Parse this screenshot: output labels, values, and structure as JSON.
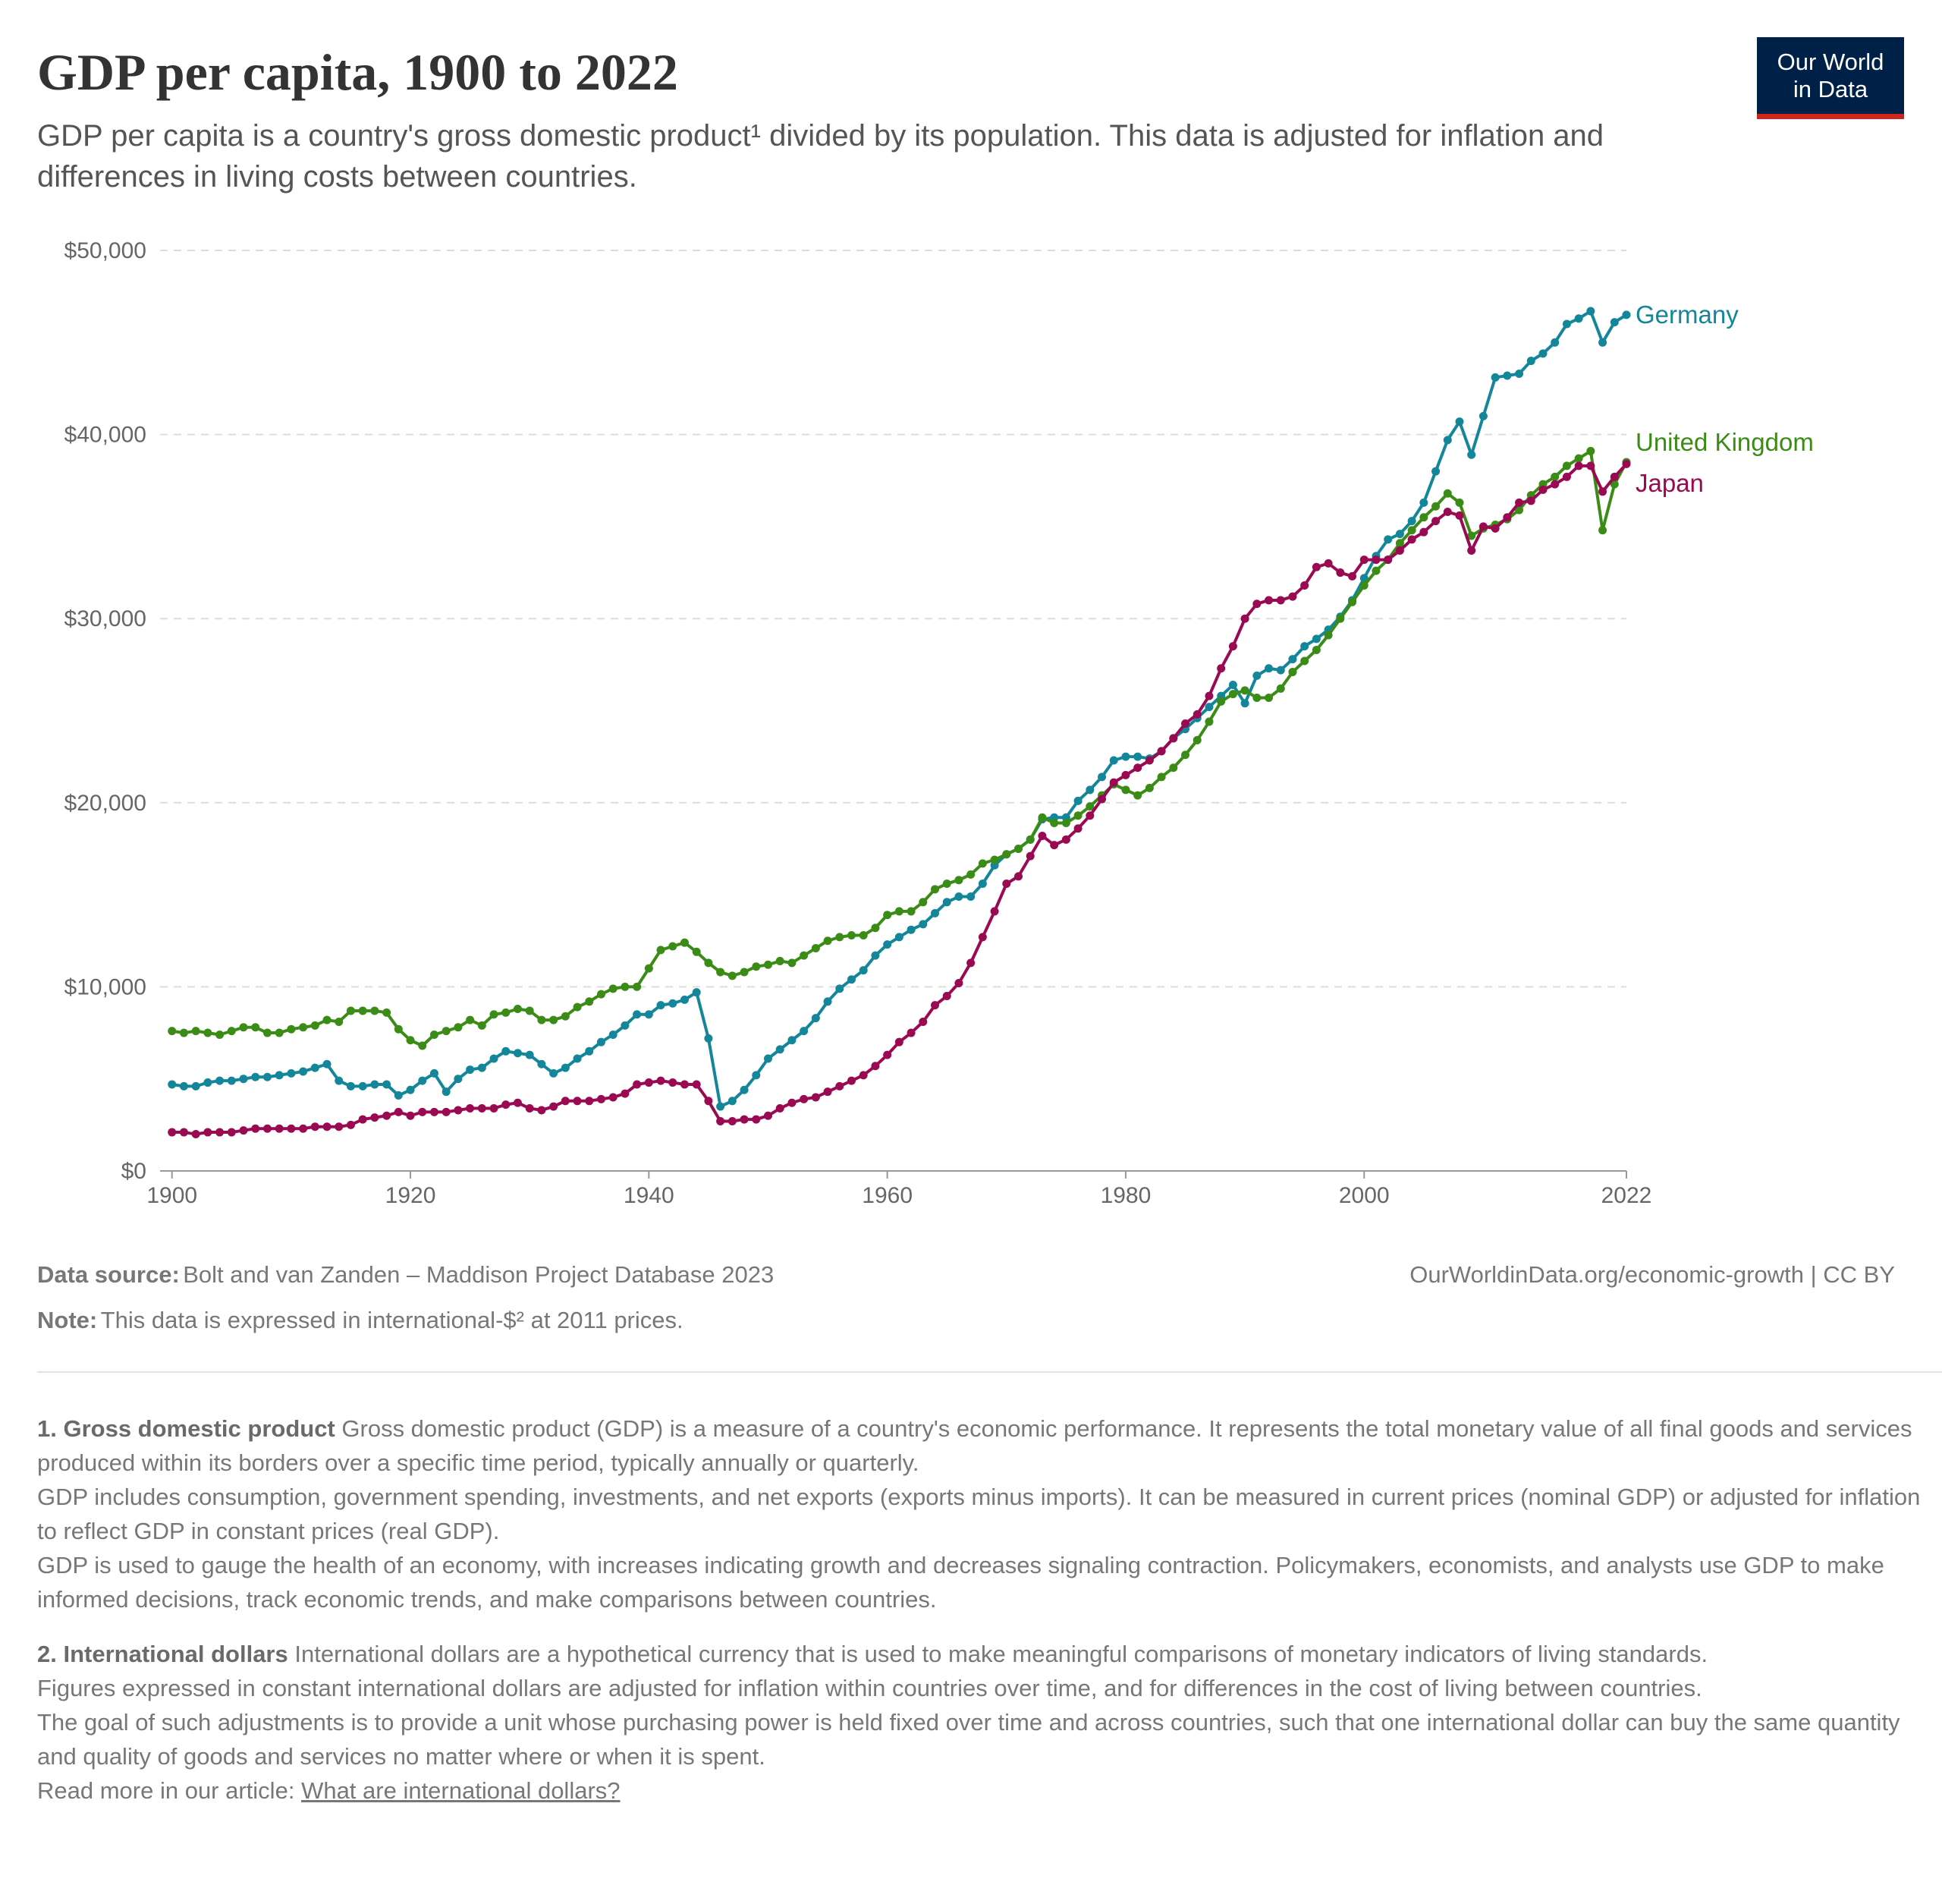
{
  "chart_data": {
    "type": "line",
    "title": "GDP per capita, 1900 to 2022",
    "subtitle": "GDP per capita is a country's gross domestic product¹ divided by its population. This data is adjusted for inflation and differences in living costs between countries.",
    "x": [
      1900,
      1901,
      1902,
      1903,
      1904,
      1905,
      1906,
      1907,
      1908,
      1909,
      1910,
      1911,
      1912,
      1913,
      1914,
      1915,
      1916,
      1917,
      1918,
      1919,
      1920,
      1921,
      1922,
      1923,
      1924,
      1925,
      1926,
      1927,
      1928,
      1929,
      1930,
      1931,
      1932,
      1933,
      1934,
      1935,
      1936,
      1937,
      1938,
      1939,
      1940,
      1941,
      1942,
      1943,
      1944,
      1945,
      1946,
      1947,
      1948,
      1949,
      1950,
      1951,
      1952,
      1953,
      1954,
      1955,
      1956,
      1957,
      1958,
      1959,
      1960,
      1961,
      1962,
      1963,
      1964,
      1965,
      1966,
      1967,
      1968,
      1969,
      1970,
      1971,
      1972,
      1973,
      1974,
      1975,
      1976,
      1977,
      1978,
      1979,
      1980,
      1981,
      1982,
      1983,
      1984,
      1985,
      1986,
      1987,
      1988,
      1989,
      1990,
      1991,
      1992,
      1993,
      1994,
      1995,
      1996,
      1997,
      1998,
      1999,
      2000,
      2001,
      2002,
      2003,
      2004,
      2005,
      2006,
      2007,
      2008,
      2009,
      2010,
      2011,
      2012,
      2013,
      2014,
      2015,
      2016,
      2017,
      2018,
      2019,
      2020,
      2021,
      2022
    ],
    "series": [
      {
        "name": "Germany",
        "color": "#13869a",
        "values": [
          4700,
          4600,
          4600,
          4800,
          4900,
          4900,
          5000,
          5100,
          5100,
          5200,
          5300,
          5400,
          5600,
          5800,
          4900,
          4600,
          4600,
          4700,
          4700,
          4100,
          4400,
          4900,
          5300,
          4300,
          5000,
          5500,
          5600,
          6100,
          6500,
          6400,
          6300,
          5800,
          5300,
          5600,
          6100,
          6500,
          7000,
          7400,
          7900,
          8500,
          8500,
          9000,
          9100,
          9300,
          9700,
          7200,
          3500,
          3800,
          4400,
          5200,
          6100,
          6600,
          7100,
          7600,
          8300,
          9200,
          9900,
          10400,
          10900,
          11700,
          12300,
          12700,
          13100,
          13400,
          14000,
          14600,
          14900,
          14900,
          15600,
          16600,
          17200,
          17500,
          18000,
          19100,
          19200,
          19200,
          20100,
          20700,
          21400,
          22300,
          22500,
          22500,
          22400,
          22800,
          23500,
          24000,
          24600,
          25200,
          25800,
          26400,
          25400,
          26900,
          27300,
          27200,
          27800,
          28500,
          28900,
          29400,
          30100,
          31000,
          32200,
          33400,
          34300,
          34600,
          35300,
          36300,
          38000,
          39700,
          40700,
          38900,
          41000,
          43100,
          43200,
          43300,
          44000,
          44400,
          45000,
          46000,
          46300,
          46700,
          45000,
          46100,
          46500
        ]
      },
      {
        "name": "United Kingdom",
        "color": "#3b8c16",
        "values": [
          7600,
          7500,
          7600,
          7500,
          7400,
          7600,
          7800,
          7800,
          7500,
          7500,
          7700,
          7800,
          7900,
          8200,
          8100,
          8700,
          8700,
          8700,
          8600,
          7700,
          7100,
          6800,
          7400,
          7600,
          7800,
          8200,
          7900,
          8500,
          8600,
          8800,
          8700,
          8200,
          8200,
          8400,
          8900,
          9200,
          9600,
          9900,
          10000,
          10000,
          11000,
          12000,
          12200,
          12400,
          11900,
          11300,
          10800,
          10600,
          10800,
          11100,
          11200,
          11400,
          11300,
          11700,
          12100,
          12500,
          12700,
          12800,
          12800,
          13200,
          13900,
          14100,
          14100,
          14600,
          15300,
          15600,
          15800,
          16100,
          16700,
          16900,
          17200,
          17500,
          18000,
          19200,
          18900,
          18900,
          19300,
          19800,
          20400,
          21000,
          20700,
          20400,
          20800,
          21400,
          21900,
          22600,
          23400,
          24400,
          25500,
          25900,
          26100,
          25700,
          25700,
          26200,
          27100,
          27700,
          28300,
          29100,
          30000,
          30900,
          31800,
          32600,
          33200,
          34100,
          34800,
          35500,
          36100,
          36800,
          36300,
          34500,
          34900,
          35100,
          35400,
          35900,
          36700,
          37300,
          37700,
          38300,
          38700,
          39100,
          34800,
          37300,
          38500
        ]
      },
      {
        "name": "Japan",
        "color": "#9a0a52",
        "values": [
          2100,
          2100,
          2000,
          2100,
          2100,
          2100,
          2200,
          2300,
          2300,
          2300,
          2300,
          2300,
          2400,
          2400,
          2400,
          2500,
          2800,
          2900,
          3000,
          3200,
          3000,
          3200,
          3200,
          3200,
          3300,
          3400,
          3400,
          3400,
          3600,
          3700,
          3400,
          3300,
          3500,
          3800,
          3800,
          3800,
          3900,
          4000,
          4200,
          4700,
          4800,
          4900,
          4800,
          4700,
          4700,
          3800,
          2700,
          2700,
          2800,
          2800,
          3000,
          3400,
          3700,
          3900,
          4000,
          4300,
          4600,
          4900,
          5200,
          5700,
          6300,
          7000,
          7500,
          8100,
          9000,
          9500,
          10200,
          11300,
          12700,
          14100,
          15600,
          16000,
          17100,
          18200,
          17700,
          18000,
          18600,
          19300,
          20200,
          21100,
          21500,
          21900,
          22300,
          22800,
          23500,
          24300,
          24800,
          25800,
          27300,
          28500,
          30000,
          30800,
          31000,
          31000,
          31200,
          31800,
          32800,
          33000,
          32500,
          32300,
          33200,
          33200,
          33200,
          33700,
          34300,
          34700,
          35300,
          35800,
          35600,
          33700,
          35000,
          34900,
          35500,
          36300,
          36400,
          37000,
          37300,
          37700,
          38300,
          38300,
          36900,
          37700,
          38400
        ]
      }
    ],
    "xlim": [
      1899,
      2022
    ],
    "xticks": [
      1900,
      1920,
      1940,
      1960,
      1980,
      2000,
      2022
    ],
    "ylim": [
      0,
      50000
    ],
    "yticks": [
      {
        "value": 0,
        "label": "$0"
      },
      {
        "value": 10000,
        "label": "$10,000"
      },
      {
        "value": 20000,
        "label": "$20,000"
      },
      {
        "value": 30000,
        "label": "$30,000"
      },
      {
        "value": 40000,
        "label": "$40,000"
      },
      {
        "value": 50000,
        "label": "$50,000"
      }
    ],
    "grid": true,
    "legend": "line-end"
  },
  "logo": {
    "line1": "Our World",
    "line2": "in Data"
  },
  "footer": {
    "source_label": "Data source:",
    "source": "Bolt and van Zanden – Maddison Project Database 2023",
    "url": "OurWorldinData.org/economic-growth | CC BY",
    "note_label": "Note:",
    "note": "This data is expressed in international-$² at 2011 prices."
  },
  "notes": [
    {
      "title": "1. Gross domestic product",
      "paragraphs": [
        "Gross domestic product (GDP) is a measure of a country's economic performance. It represents the total monetary value of all final goods and services produced within its borders over a specific time period, typically annually or quarterly.",
        "GDP includes consumption, government spending, investments, and net exports (exports minus imports). It can be measured in current prices (nominal GDP) or adjusted for inflation to reflect GDP in constant prices (real GDP).",
        "GDP is used to gauge the health of an economy, with increases indicating growth and decreases signaling contraction. Policymakers, economists, and analysts use GDP to make informed decisions, track economic trends, and make comparisons between countries."
      ]
    },
    {
      "title": "2. International dollars",
      "paragraphs": [
        "International dollars are a hypothetical currency that is used to make meaningful comparisons of monetary indicators of living standards.",
        "Figures expressed in constant international dollars are adjusted for inflation within countries over time, and for differences in the cost of living between countries.",
        "The goal of such adjustments is to provide a unit whose purchasing power is held fixed over time and across countries, such that one international dollar can buy the same quantity and quality of goods and services no matter where or when it is spent."
      ],
      "read_more": "Read more in our article:",
      "link": "What are international dollars?"
    }
  ]
}
